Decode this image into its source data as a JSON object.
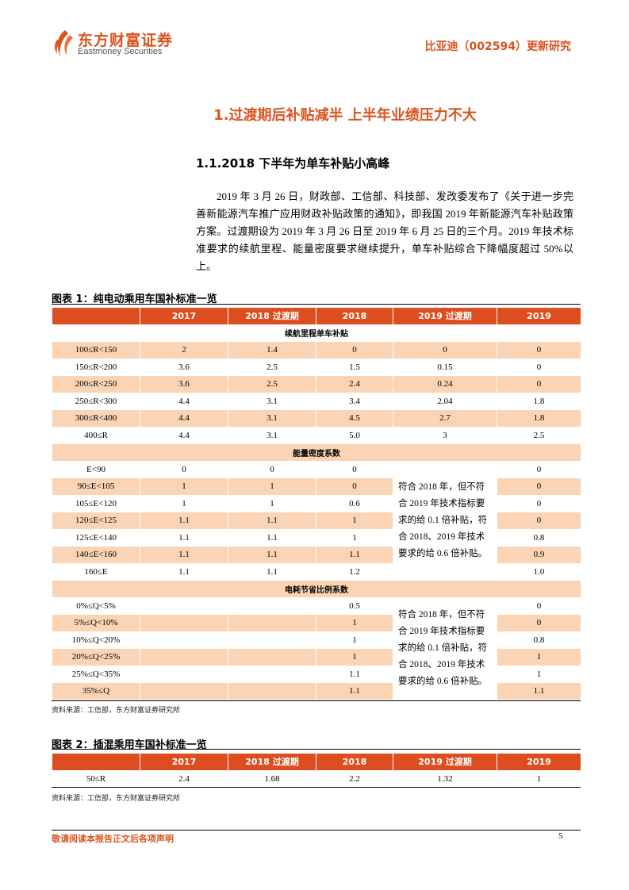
{
  "header": {
    "logo_cn": "东方财富证券",
    "logo_en": "Eastmoney Securities",
    "report_title": "比亚迪（002594）更新研究",
    "brand_color": "#D9531E"
  },
  "section_title": "1.过渡期后补贴减半 上半年业绩压力不大",
  "subsection_title": "1.1.2018 下半年为单车补贴小高峰",
  "paragraph": "2019 年 3 月 26 日，财政部、工信部、科技部、发改委发布了《关于进一步完善新能源汽车推广应用财政补贴政策的通知》，即我国 2019 年新能源汽车补贴政策方案。过渡期设为 2019 年 3 月 26 日至 2019 年 6 月 25 日的三个月。2019 年技术标准要求的续航里程、能量密度要求继续提升，单车补贴综合下降幅度超过 50%以上。",
  "table1": {
    "title": "图表 1：纯电动乘用车国补标准一览",
    "columns": [
      "",
      "2017",
      "2018 过渡期",
      "2018",
      "2019 过渡期",
      "2019"
    ],
    "sections": [
      {
        "title": "续航里程单车补贴",
        "note": null,
        "rows": [
          [
            "100≤R<150",
            "2",
            "1.4",
            "0",
            "0",
            "0"
          ],
          [
            "150≤R<200",
            "3.6",
            "2.5",
            "1.5",
            "0.15",
            "0"
          ],
          [
            "200≤R<250",
            "3.6",
            "2.5",
            "2.4",
            "0.24",
            "0"
          ],
          [
            "250≤R<300",
            "4.4",
            "3.1",
            "3.4",
            "2.04",
            "1.8"
          ],
          [
            "300≤R<400",
            "4.4",
            "3.1",
            "4.5",
            "2.7",
            "1.8"
          ],
          [
            "400≤R",
            "4.4",
            "3.1",
            "5.0",
            "3",
            "2.5"
          ]
        ]
      },
      {
        "title": "能量密度系数",
        "note": "符合 2018 年，但不符合 2019 年技术指标要求的给 0.1 倍补贴，符合 2018、2019 年技术要求的给 0.6 倍补贴。",
        "rows": [
          [
            "E<90",
            "0",
            "0",
            "0",
            null,
            "0"
          ],
          [
            "90≤E<105",
            "1",
            "1",
            "0",
            null,
            "0"
          ],
          [
            "105≤E<120",
            "1",
            "1",
            "0.6",
            null,
            "0"
          ],
          [
            "120≤E<125",
            "1.1",
            "1.1",
            "1",
            null,
            "0"
          ],
          [
            "125≤E<140",
            "1.1",
            "1.1",
            "1",
            null,
            "0.8"
          ],
          [
            "140≤E<160",
            "1.1",
            "1.1",
            "1.1",
            null,
            "0.9"
          ],
          [
            "160≤E",
            "1.1",
            "1.1",
            "1.2",
            null,
            "1.0"
          ]
        ]
      },
      {
        "title": "电耗节省比例系数",
        "note": "符合 2018 年，但不符合 2019 年技术指标要求的给 0.1 倍补贴，符合 2018、2019 年技术要求的给 0.6 倍补贴。",
        "rows": [
          [
            "0%≤Q<5%",
            "",
            "",
            "0.5",
            null,
            "0"
          ],
          [
            "5%≤Q<10%",
            "",
            "",
            "1",
            null,
            "0"
          ],
          [
            "10%≤Q<20%",
            "",
            "",
            "1",
            null,
            "0.8"
          ],
          [
            "20%≤Q<25%",
            "",
            "",
            "1",
            null,
            "1"
          ],
          [
            "25%≤Q<35%",
            "",
            "",
            "1.1",
            null,
            "1"
          ],
          [
            "35%≤Q",
            "",
            "",
            "1.1",
            null,
            "1.1"
          ]
        ]
      }
    ],
    "source": "资料来源：工信部，东方财富证券研究所"
  },
  "table2": {
    "title": "图表 2：插混乘用车国补标准一览",
    "columns": [
      "",
      "2017",
      "2018 过渡期",
      "2018",
      "2019 过渡期",
      "2019"
    ],
    "rows": [
      [
        "50≤R",
        "2.4",
        "1.68",
        "2.2",
        "1.32",
        "1"
      ]
    ],
    "source": "资料来源：工信部，东方财富证券研究所"
  },
  "colors": {
    "header_fill": "#DC4E1F",
    "row_shade": "#FAD4B4"
  },
  "footer": {
    "disclaimer": "敬请阅读本报告正文后各项声明",
    "page_number": "5"
  }
}
